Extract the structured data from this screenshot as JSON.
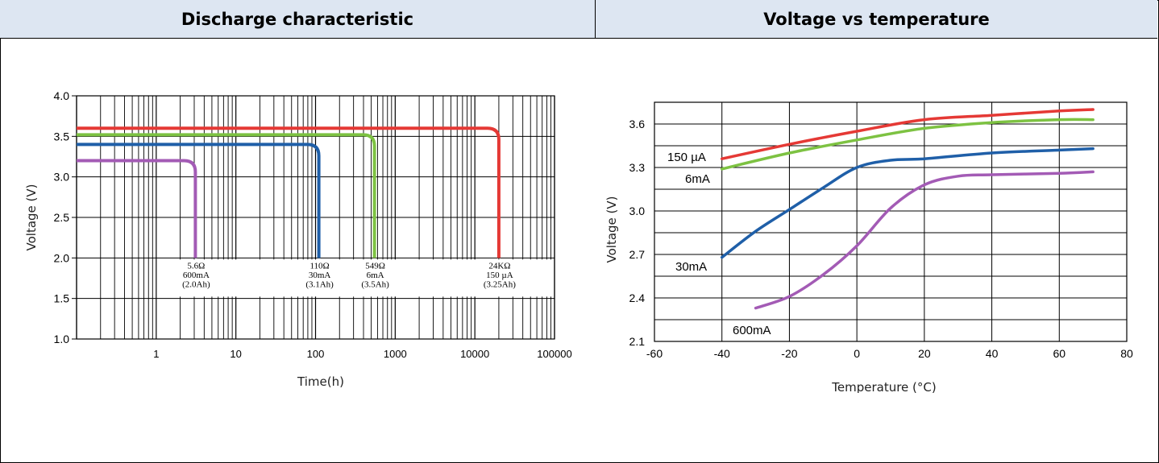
{
  "headers": {
    "left": "Discharge characteristic",
    "right": "Voltage vs temperature"
  },
  "chart_data": [
    {
      "type": "line",
      "title": "Discharge characteristic",
      "xlabel": "Time(h)",
      "ylabel": "Voltage (V)",
      "xscale": "log",
      "xlim": [
        0.1,
        100000
      ],
      "ylim": [
        1.0,
        4.0
      ],
      "x_ticks": [
        1,
        10,
        100,
        1000,
        10000,
        100000
      ],
      "x_tick_labels": [
        "1",
        "10",
        "100",
        "1000",
        "10000",
        "100000"
      ],
      "y_ticks": [
        1.0,
        1.5,
        2.0,
        2.5,
        3.0,
        3.5,
        4.0
      ],
      "y_tick_labels": [
        "1.0",
        "1.5",
        "2.0",
        "2.5",
        "3.0",
        "3.5",
        "4.0"
      ],
      "grid": true,
      "series": [
        {
          "color": "#e53935",
          "plateau_v": 3.6,
          "end_x": 20000,
          "annotation": [
            "24KΩ",
            "150 µA",
            "(3.25Ah)"
          ]
        },
        {
          "color": "#7dc242",
          "plateau_v": 3.52,
          "end_x": 549,
          "annotation": [
            "549Ω",
            "6mA",
            "(3.5Ah)"
          ]
        },
        {
          "color": "#1f5fa8",
          "plateau_v": 3.4,
          "end_x": 110,
          "annotation": [
            "110Ω",
            "30mA",
            "(3.1Ah)"
          ]
        },
        {
          "color": "#a35bb5",
          "plateau_v": 3.2,
          "end_x": 3.1,
          "annotation": [
            "5.6Ω",
            "600mA",
            "(2.0Ah)"
          ]
        }
      ]
    },
    {
      "type": "line",
      "title": "Voltage vs temperature",
      "xlabel": "Temperature (°C)",
      "ylabel": "Voltage (V)",
      "xlim": [
        -60,
        80
      ],
      "ylim": [
        2.1,
        3.75
      ],
      "x_ticks": [
        -60,
        -40,
        -20,
        0,
        20,
        40,
        60,
        80
      ],
      "x_tick_labels": [
        "-60",
        "-40",
        "-20",
        "0",
        "20",
        "40",
        "60",
        "80"
      ],
      "y_ticks": [
        2.1,
        2.4,
        2.7,
        3.0,
        3.3,
        3.6
      ],
      "y_tick_labels": [
        "2.1",
        "2.4",
        "2.7",
        "3.0",
        "3.3",
        "3.6"
      ],
      "grid": true,
      "series": [
        {
          "name": "150 µA",
          "color": "#e53935",
          "x": [
            -40,
            -20,
            0,
            20,
            40,
            60,
            70
          ],
          "y": [
            3.36,
            3.46,
            3.55,
            3.63,
            3.66,
            3.69,
            3.7
          ]
        },
        {
          "name": "6mA",
          "color": "#7dc242",
          "x": [
            -40,
            -20,
            0,
            20,
            40,
            60,
            70
          ],
          "y": [
            3.29,
            3.4,
            3.49,
            3.57,
            3.61,
            3.63,
            3.63
          ]
        },
        {
          "name": "30mA",
          "color": "#1f5fa8",
          "x": [
            -40,
            -30,
            -20,
            -10,
            0,
            10,
            20,
            40,
            60,
            70
          ],
          "y": [
            2.68,
            2.86,
            3.01,
            3.16,
            3.3,
            3.35,
            3.36,
            3.4,
            3.42,
            3.43
          ]
        },
        {
          "name": "600mA",
          "color": "#a35bb5",
          "x": [
            -30,
            -20,
            -10,
            0,
            10,
            20,
            30,
            40,
            60,
            70
          ],
          "y": [
            2.33,
            2.41,
            2.56,
            2.76,
            3.02,
            3.18,
            3.24,
            3.25,
            3.26,
            3.27
          ]
        }
      ]
    }
  ]
}
